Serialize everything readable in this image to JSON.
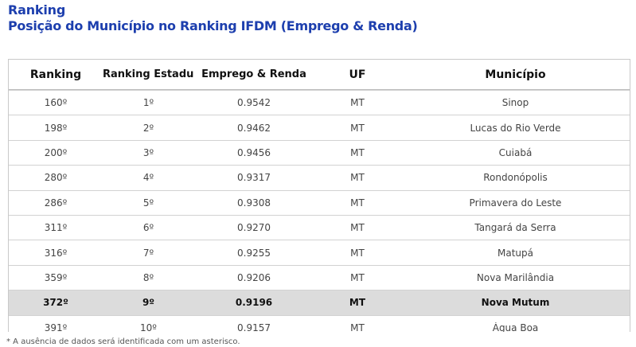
{
  "title": "Ranking",
  "subtitle": "Posição do Município no Ranking IFDM (Emprego & Renda)",
  "table": {
    "headers": [
      "Ranking",
      "Ranking Estadual",
      "Emprego & Renda",
      "UF",
      "Município"
    ],
    "rows": [
      [
        "160º",
        "1º",
        "0.9542",
        "MT",
        "Sinop"
      ],
      [
        "198º",
        "2º",
        "0.9462",
        "MT",
        "Lucas do Rio Verde"
      ],
      [
        "200º",
        "3º",
        "0.9456",
        "MT",
        "Cuiabá"
      ],
      [
        "280º",
        "4º",
        "0.9317",
        "MT",
        "Rondonópolis"
      ],
      [
        "286º",
        "5º",
        "0.9308",
        "MT",
        "Primavera do Leste"
      ],
      [
        "311º",
        "6º",
        "0.9270",
        "MT",
        "Tangará da Serra"
      ],
      [
        "316º",
        "7º",
        "0.9255",
        "MT",
        "Matupá"
      ],
      [
        "359º",
        "8º",
        "0.9206",
        "MT",
        "Nova Marilândia"
      ],
      [
        "372º",
        "9º",
        "0.9196",
        "MT",
        "Nova Mutum"
      ],
      [
        "391º",
        "10º",
        "0.9157",
        "MT",
        "Água Boa"
      ]
    ],
    "highlight_color": "#dcdcdc"
  },
  "footnote": "* A ausência de dados será identificada com um asterisco.",
  "colors": {
    "title": "#1d3fae"
  }
}
